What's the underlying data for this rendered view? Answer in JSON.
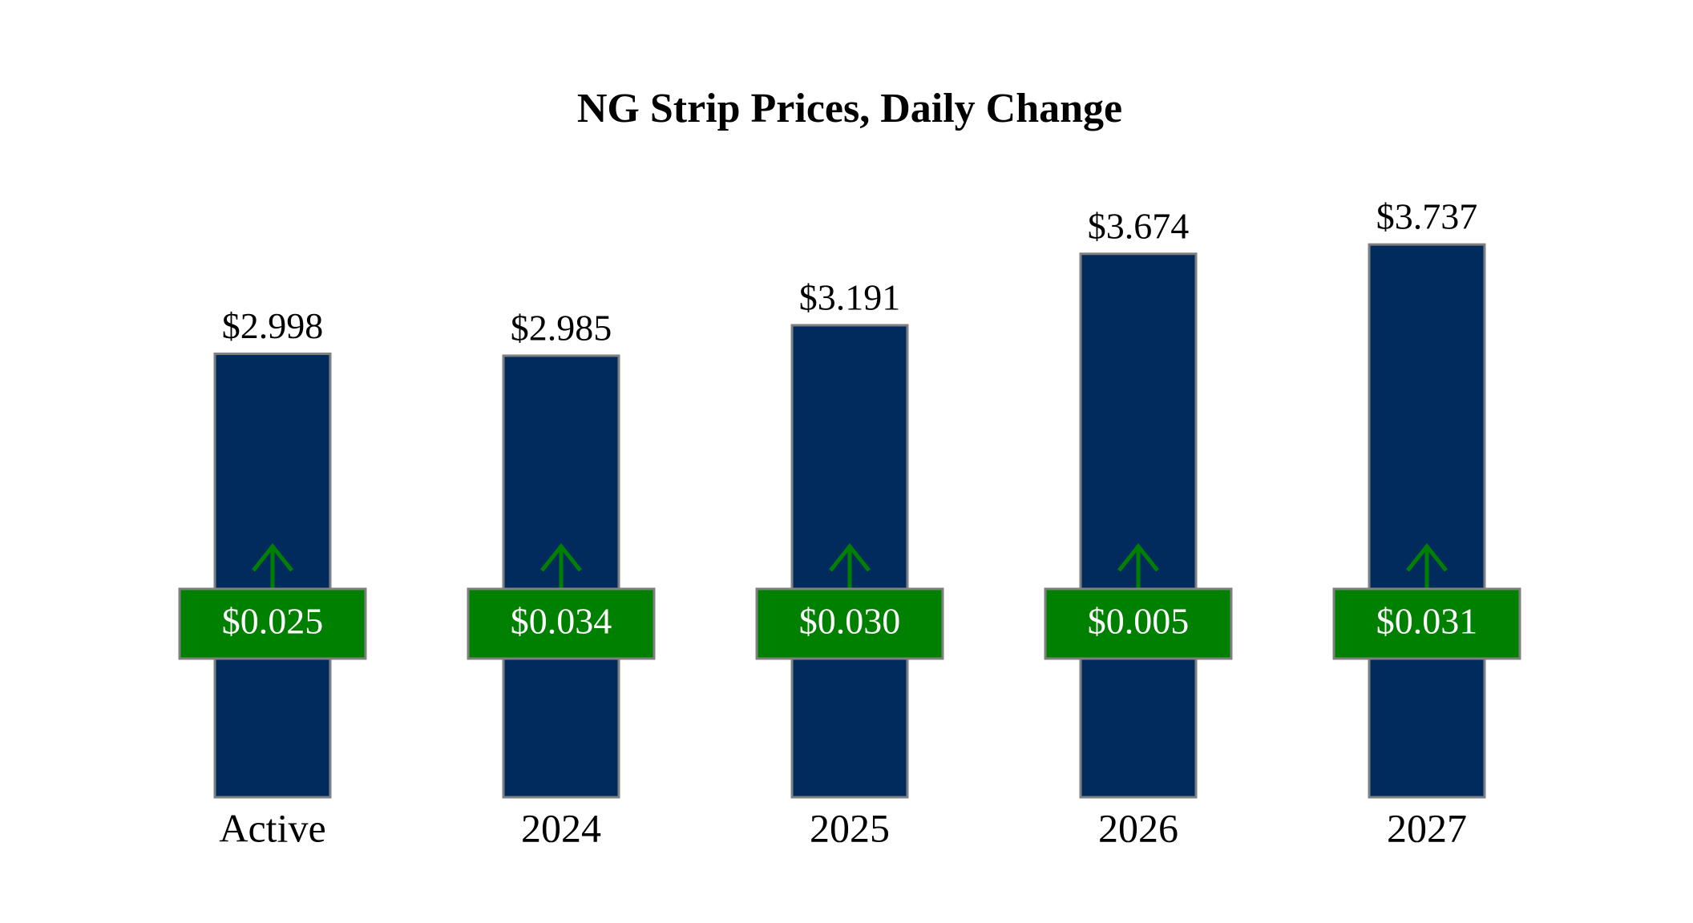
{
  "chart_data": {
    "type": "bar",
    "title": "NG Strip Prices, Daily Change",
    "categories": [
      "Active",
      "2024",
      "2025",
      "2026",
      "2027"
    ],
    "values": [
      2.998,
      2.985,
      3.191,
      3.674,
      3.737
    ],
    "value_labels": [
      "$2.998",
      "$2.985",
      "$3.191",
      "$3.674",
      "$3.737"
    ],
    "changes": [
      0.025,
      0.034,
      0.03,
      0.005,
      0.031
    ],
    "change_labels": [
      "$0.025",
      "$0.034",
      "$0.030",
      "$0.005",
      "$0.031"
    ],
    "color": "#002b5c",
    "change_up_color": "#008000",
    "ylim": [
      0,
      5
    ]
  }
}
